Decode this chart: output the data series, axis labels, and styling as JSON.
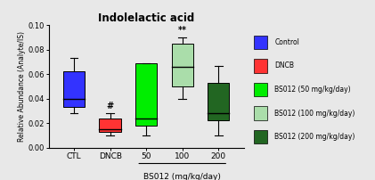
{
  "title": "Indolelactic acid",
  "ylabel": "Relative Abundance (Analyte/IS)",
  "xlabel": "BS012 (mg/kg/day)",
  "xtick_labels": [
    "CTL",
    "DNCB",
    "50",
    "100",
    "200"
  ],
  "ylim": [
    0.0,
    0.1
  ],
  "yticks": [
    0.0,
    0.02,
    0.04,
    0.06,
    0.08,
    0.1
  ],
  "groups": [
    {
      "label": "Control",
      "color": "#3333FF",
      "whisker_low": 0.028,
      "q1": 0.033,
      "median": 0.04,
      "q3": 0.062,
      "whisker_high": 0.073,
      "annotation": null
    },
    {
      "label": "DNCB",
      "color": "#FF3333",
      "whisker_low": 0.01,
      "q1": 0.013,
      "median": 0.015,
      "q3": 0.024,
      "whisker_high": 0.028,
      "annotation": "#"
    },
    {
      "label": "BS012 (50 mg/kg/day)",
      "color": "#00EE00",
      "whisker_low": 0.01,
      "q1": 0.018,
      "median": 0.024,
      "q3": 0.069,
      "whisker_high": 0.069,
      "annotation": null
    },
    {
      "label": "BS012 (100 mg/kg/day)",
      "color": "#AADDAA",
      "whisker_low": 0.04,
      "q1": 0.05,
      "median": 0.066,
      "q3": 0.085,
      "whisker_high": 0.09,
      "annotation": "**"
    },
    {
      "label": "BS012 (200 mg/kg/day)",
      "color": "#226622",
      "whisker_low": 0.01,
      "q1": 0.022,
      "median": 0.028,
      "q3": 0.053,
      "whisker_high": 0.067,
      "annotation": null
    }
  ],
  "legend_colors": [
    "#3333FF",
    "#FF3333",
    "#00EE00",
    "#AADDAA",
    "#226622"
  ],
  "legend_labels": [
    "Control",
    "DNCB",
    "BS012 (50 mg/kg/day)",
    "BS012 (100 mg/kg/day)",
    "BS012 (200 mg/kg/day)"
  ],
  "background_color": "#e8e8e8",
  "box_width": 0.6
}
